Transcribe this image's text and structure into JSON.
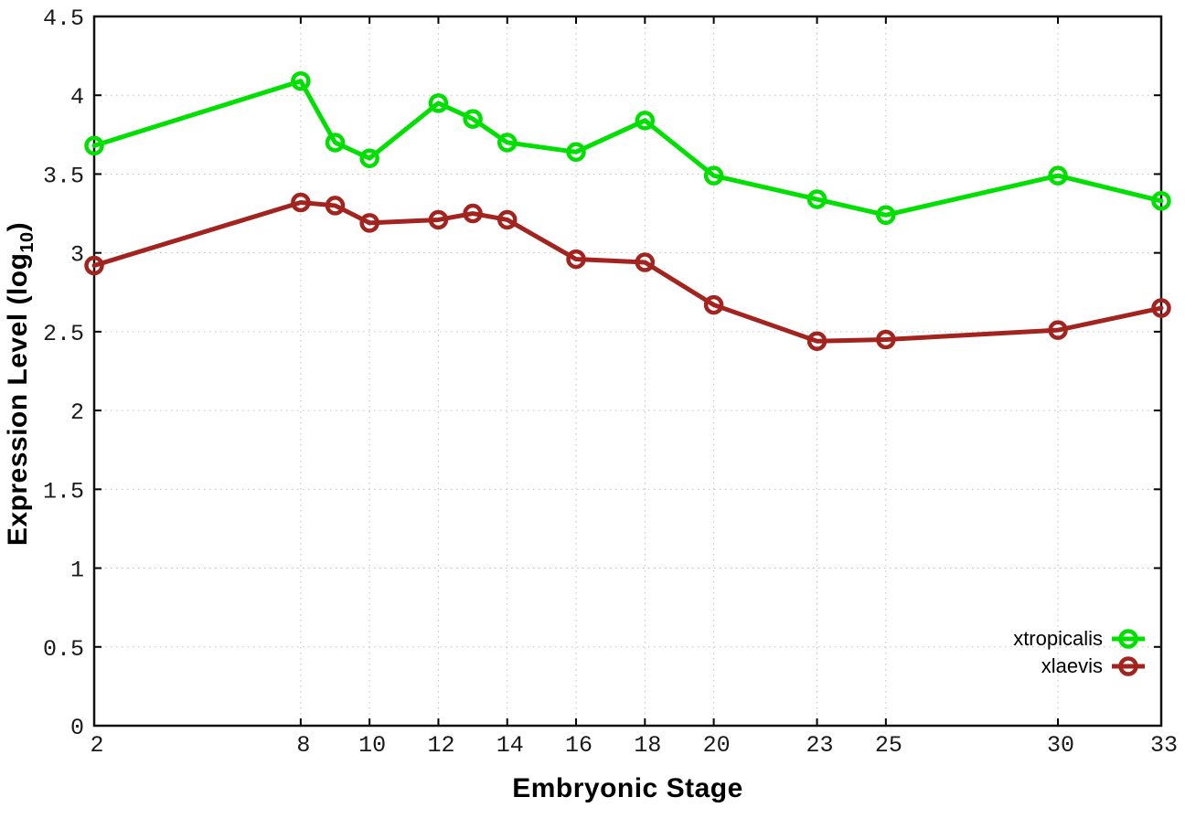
{
  "chart_data": {
    "type": "line",
    "title": "",
    "xlabel": "Embryonic Stage",
    "ylabel": {
      "prefix": "Expression Level (log",
      "subscript": "10",
      "suffix": ")"
    },
    "x": [
      2,
      8,
      9,
      10,
      12,
      13,
      14,
      16,
      18,
      20,
      23,
      25,
      30,
      33
    ],
    "series": [
      {
        "name": "xtropicalis",
        "color": "#00e000",
        "values": [
          3.68,
          4.09,
          3.7,
          3.6,
          3.95,
          3.85,
          3.7,
          3.64,
          3.84,
          3.49,
          3.34,
          3.24,
          3.49,
          3.33
        ]
      },
      {
        "name": "xlaevis",
        "color": "#a3231f",
        "values": [
          2.92,
          3.32,
          3.3,
          3.19,
          3.21,
          3.25,
          3.21,
          2.96,
          2.94,
          2.67,
          2.44,
          2.45,
          2.51,
          2.65
        ]
      }
    ],
    "xlim": [
      2,
      33
    ],
    "ylim": [
      0,
      4.5
    ],
    "xticks": {
      "values": [
        2,
        8,
        10,
        12,
        14,
        16,
        18,
        20,
        23,
        25,
        30,
        33
      ],
      "labels": [
        "2",
        "8",
        "10",
        "12",
        "14",
        "16",
        "18",
        "20",
        "23",
        "25",
        "30",
        "33"
      ]
    },
    "yticks": {
      "values": [
        0,
        0.5,
        1,
        1.5,
        2,
        2.5,
        3,
        3.5,
        4,
        4.5
      ],
      "labels": [
        "0",
        "0.5",
        "1",
        "1.5",
        "2",
        "2.5",
        "3",
        "3.5",
        "4",
        "4.5"
      ]
    },
    "grid": true,
    "legend_position": "inside-bottom-right"
  },
  "style": {
    "background": "#ffffff",
    "grid_color": "#bfbfbf",
    "axis_color": "#000000",
    "text_color": "#1a1a1a",
    "line_width": 5,
    "marker_radius": 8.5,
    "marker_stroke": 4.5
  }
}
